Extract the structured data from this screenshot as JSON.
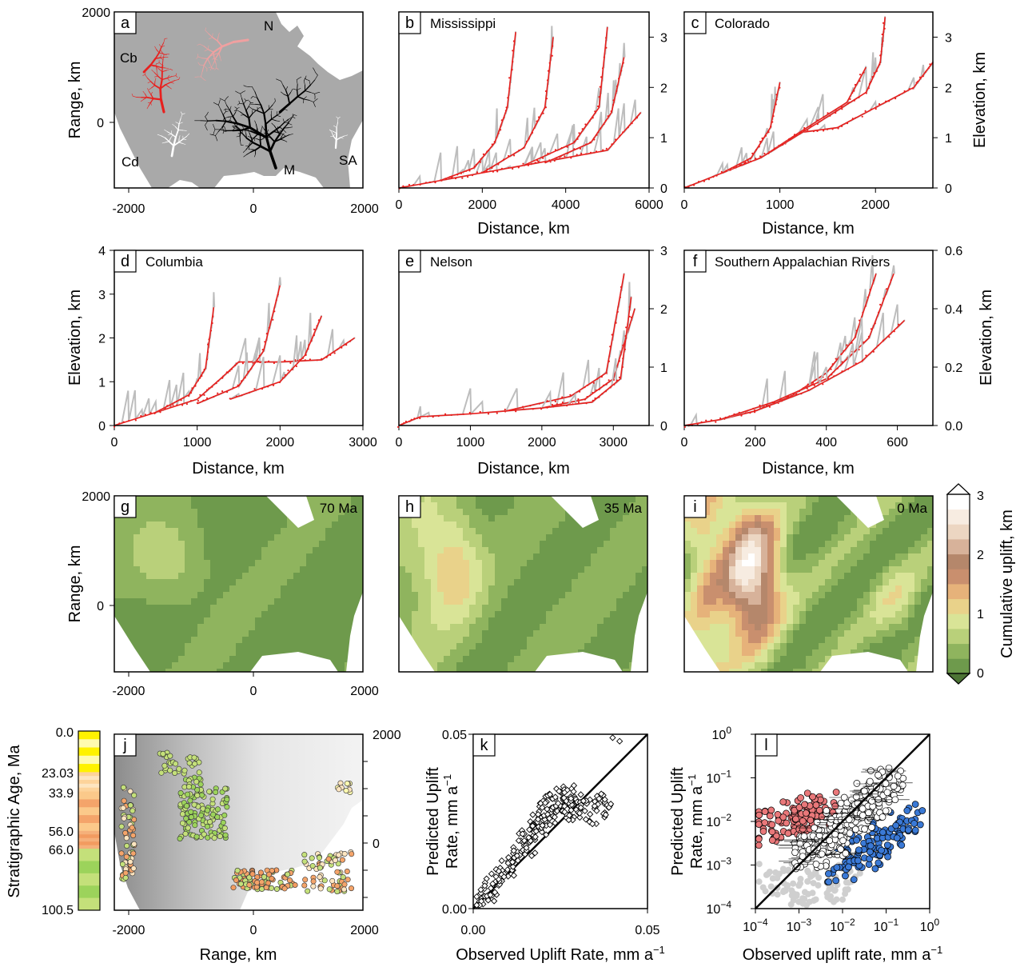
{
  "colors": {
    "land": "#a9a9a9",
    "sea": "#ffffff",
    "model_line": "#e8201e",
    "observed_line": "#bdbdbd",
    "black": "#000000",
    "uplift_low": "#6e9a4c",
    "uplift_high": "#ffffff",
    "overpredicted": "#e9787a",
    "underpredicted": "#3a79d6",
    "unclassified": "#cfcfcf"
  },
  "panel_a": {
    "letter": "a",
    "x_ticks": [
      "-2000",
      "0",
      "2000"
    ],
    "y_ticks": [
      "2000",
      "0"
    ],
    "ylabel": "Range, km",
    "drainage_labels": [
      "N",
      "Cb",
      "Cd",
      "M",
      "SA"
    ]
  },
  "panel_b": {
    "letter": "b",
    "title": "Mississippi",
    "x_ticks": [
      "0",
      "2000",
      "4000",
      "6000"
    ],
    "y_ticks": [
      "0",
      "1",
      "2",
      "3"
    ],
    "xlabel": "Distance, km"
  },
  "panel_c": {
    "letter": "c",
    "title": "Colorado",
    "x_ticks": [
      "0",
      "1000",
      "2000"
    ],
    "y_ticks": [
      "0",
      "1",
      "2",
      "3"
    ],
    "xlabel": "Distance, km",
    "ylabel": "Elevation, km"
  },
  "panel_d": {
    "letter": "d",
    "title": "Columbia",
    "x_ticks": [
      "0",
      "1000",
      "2000",
      "3000"
    ],
    "y_ticks": [
      "0",
      "1",
      "2",
      "3",
      "4"
    ],
    "xlabel": "Distance, km",
    "ylabel": "Elevation, km"
  },
  "panel_e": {
    "letter": "e",
    "title": "Nelson",
    "x_ticks": [
      "0",
      "1000",
      "2000",
      "3000"
    ],
    "y_ticks": [
      "0",
      "1",
      "2",
      "3"
    ],
    "xlabel": "Distance, km"
  },
  "panel_f": {
    "letter": "f",
    "title": "Southern Appalachian Rivers",
    "x_ticks": [
      "0",
      "200",
      "400",
      "600"
    ],
    "y_ticks": [
      "0.0",
      "0.2",
      "0.4",
      "0.6"
    ],
    "xlabel": "Distance, km",
    "ylabel": "Elevation, km"
  },
  "panel_g": {
    "letter": "g",
    "age": "70 Ma",
    "x_ticks": [
      "-2000",
      "0",
      "2000"
    ],
    "y_ticks": [
      "2000",
      "0"
    ],
    "ylabel": "Range, km"
  },
  "panel_h": {
    "letter": "h",
    "age": "35 Ma"
  },
  "panel_i": {
    "letter": "i",
    "age": "0 Ma"
  },
  "uplift_colorbar": {
    "label": "Cumulative uplift, km",
    "ticks": [
      "0",
      "1",
      "2",
      "3"
    ]
  },
  "age_colorbar": {
    "label": "Stratigraphic Age, Ma",
    "ticks": [
      "0.0",
      "23.03",
      "33.9",
      "56.0",
      "66.0",
      "100.5"
    ]
  },
  "panel_j": {
    "letter": "j",
    "x_ticks": [
      "-2000",
      "0",
      "2000"
    ],
    "y_ticks": [
      "2000",
      "0"
    ],
    "xlabel": "Range, km"
  },
  "panel_k": {
    "letter": "k",
    "x_ticks": [
      "0.00",
      "0.05"
    ],
    "y_ticks": [
      "0.00",
      "0.05"
    ],
    "xlabel": "Observed Uplift Rate, mm a",
    "xlabel_sup": "−1",
    "ylabel1": "Predicted Uplift",
    "ylabel2": "Rate, mm a",
    "ylabel_sup": "−1"
  },
  "panel_l": {
    "letter": "l",
    "x_ticks": [
      "-4",
      "-3",
      "-2",
      "-1",
      "0"
    ],
    "y_ticks": [
      "-4",
      "-3",
      "-2",
      "-1",
      "0"
    ],
    "tick_base": "10",
    "xlabel": "Observed uplift rate, mm a",
    "xlabel_sup": "−1",
    "ylabel1": "Predicted Uplift",
    "ylabel2": "Rate, mm a",
    "ylabel_sup": "−1"
  },
  "chart_data": [
    {
      "panel": "b",
      "type": "line",
      "title": "Mississippi",
      "xlabel": "Distance, km",
      "ylabel": "",
      "xlim": [
        0,
        6000
      ],
      "ylim": [
        0,
        3.5
      ],
      "series": [
        {
          "values_x": [
            0,
            1000,
            2000,
            3000,
            4000,
            5000,
            5800
          ],
          "values_y": [
            0,
            0.15,
            0.3,
            0.45,
            0.6,
            0.75,
            1.5
          ]
        },
        {
          "values_x": [
            1000,
            1800,
            2300,
            2600,
            2800
          ],
          "values_y": [
            0.15,
            0.4,
            0.9,
            1.6,
            3.1
          ]
        },
        {
          "values_x": [
            2000,
            3000,
            3500,
            3700
          ],
          "values_y": [
            0.3,
            0.8,
            1.6,
            3.0
          ]
        },
        {
          "values_x": [
            3000,
            4200,
            4800,
            5000
          ],
          "values_y": [
            0.45,
            0.9,
            1.6,
            3.2
          ]
        },
        {
          "values_x": [
            3500,
            4600,
            5100,
            5400
          ],
          "values_y": [
            0.5,
            0.9,
            1.5,
            2.6
          ]
        }
      ]
    },
    {
      "panel": "c",
      "type": "line",
      "title": "Colorado",
      "xlabel": "Distance, km",
      "ylabel": "Elevation, km",
      "xlim": [
        0,
        2600
      ],
      "ylim": [
        0,
        3.5
      ],
      "series": [
        {
          "values_x": [
            0,
            400,
            800,
            1200,
            1600,
            2000,
            2400,
            2600
          ],
          "values_y": [
            0,
            0.3,
            0.6,
            1.1,
            1.2,
            1.6,
            2.0,
            2.5
          ]
        },
        {
          "values_x": [
            400,
            700,
            900,
            1000
          ],
          "values_y": [
            0.3,
            0.6,
            1.2,
            2.1
          ]
        },
        {
          "values_x": [
            800,
            1400,
            1900,
            2050,
            2100
          ],
          "values_y": [
            0.6,
            1.3,
            1.9,
            2.5,
            3.4
          ]
        },
        {
          "values_x": [
            1200,
            1700,
            1900
          ],
          "values_y": [
            1.1,
            1.7,
            2.4
          ]
        }
      ]
    },
    {
      "panel": "d",
      "type": "line",
      "title": "Columbia",
      "xlabel": "Distance, km",
      "ylabel": "Elevation, km",
      "xlim": [
        0,
        3000
      ],
      "ylim": [
        0,
        4
      ],
      "series": [
        {
          "values_x": [
            0,
            500,
            1000,
            1300,
            1500,
            2000,
            2500,
            2900
          ],
          "values_y": [
            0,
            0.3,
            0.6,
            1.1,
            1.45,
            1.45,
            1.5,
            2.0
          ]
        },
        {
          "values_x": [
            500,
            900,
            1100,
            1200
          ],
          "values_y": [
            0.3,
            0.7,
            1.3,
            2.7
          ]
        },
        {
          "values_x": [
            1000,
            1500,
            1800,
            2000
          ],
          "values_y": [
            0.5,
            0.9,
            1.7,
            3.2
          ]
        },
        {
          "values_x": [
            1400,
            2000,
            2300,
            2500
          ],
          "values_y": [
            0.6,
            1.0,
            1.6,
            2.5
          ]
        }
      ]
    },
    {
      "panel": "e",
      "type": "line",
      "title": "Nelson",
      "xlabel": "Distance, km",
      "ylabel": "",
      "xlim": [
        0,
        3500
      ],
      "ylim": [
        0,
        3
      ],
      "series": [
        {
          "values_x": [
            0,
            300,
            1000,
            2000,
            2600,
            3000,
            3300
          ],
          "values_y": [
            0,
            0.15,
            0.2,
            0.3,
            0.45,
            0.8,
            2.0
          ]
        },
        {
          "values_x": [
            1500,
            2400,
            2900,
            3150
          ],
          "values_y": [
            0.25,
            0.5,
            0.9,
            2.6
          ]
        },
        {
          "values_x": [
            2000,
            2700,
            3100,
            3250
          ],
          "values_y": [
            0.3,
            0.4,
            0.8,
            2.2
          ]
        }
      ]
    },
    {
      "panel": "f",
      "type": "line",
      "title": "Southern Appalachian Rivers",
      "xlabel": "Distance, km",
      "ylabel": "Elevation, km",
      "xlim": [
        0,
        700
      ],
      "ylim": [
        0,
        0.6
      ],
      "series": [
        {
          "values_x": [
            0,
            100,
            200,
            300,
            400,
            480,
            540
          ],
          "values_y": [
            0,
            0.02,
            0.05,
            0.1,
            0.18,
            0.3,
            0.52
          ]
        },
        {
          "values_x": [
            100,
            250,
            400,
            520,
            590
          ],
          "values_y": [
            0.02,
            0.08,
            0.16,
            0.3,
            0.52
          ]
        },
        {
          "values_x": [
            200,
            350,
            500,
            620
          ],
          "values_y": [
            0.05,
            0.12,
            0.22,
            0.36
          ]
        }
      ]
    },
    {
      "panel": "k",
      "type": "scatter",
      "xlabel": "Observed Uplift Rate, mm a−1",
      "ylabel": "Predicted Uplift Rate, mm a−1",
      "xlim": [
        0,
        0.05
      ],
      "ylim": [
        0,
        0.05
      ],
      "x": [
        0.002,
        0.004,
        0.005,
        0.007,
        0.008,
        0.01,
        0.012,
        0.013,
        0.015,
        0.016,
        0.017,
        0.018,
        0.019,
        0.02,
        0.021,
        0.022,
        0.023,
        0.024,
        0.025,
        0.026,
        0.027,
        0.028,
        0.03,
        0.032,
        0.034,
        0.036,
        0.038,
        0.04,
        0.042
      ],
      "y": [
        0.002,
        0.004,
        0.006,
        0.007,
        0.01,
        0.012,
        0.014,
        0.016,
        0.02,
        0.022,
        0.018,
        0.025,
        0.024,
        0.028,
        0.026,
        0.03,
        0.027,
        0.032,
        0.029,
        0.031,
        0.028,
        0.033,
        0.03,
        0.029,
        0.027,
        0.031,
        0.029,
        0.049,
        0.048
      ]
    },
    {
      "panel": "l",
      "type": "scatter",
      "xscale": "log",
      "yscale": "log",
      "xlabel": "Observed uplift rate, mm a−1",
      "ylabel": "Predicted Uplift Rate, mm a−1",
      "xlim": [
        0.0001,
        1
      ],
      "ylim": [
        0.0001,
        1
      ],
      "series": [
        {
          "group": "overpredicted",
          "x": [
            0.0002,
            0.0005,
            0.001,
            0.002,
            0.003
          ],
          "y": [
            0.007,
            0.009,
            0.012,
            0.015,
            0.02
          ]
        },
        {
          "group": "within",
          "x": [
            0.002,
            0.005,
            0.01,
            0.02,
            0.05,
            0.1
          ],
          "y": [
            0.002,
            0.004,
            0.008,
            0.015,
            0.03,
            0.07
          ]
        },
        {
          "group": "underpredicted",
          "x": [
            0.01,
            0.03,
            0.05,
            0.1,
            0.3
          ],
          "y": [
            0.001,
            0.002,
            0.003,
            0.005,
            0.01
          ]
        },
        {
          "group": "unclassified",
          "x": [
            0.0003,
            0.001,
            0.003,
            0.01
          ],
          "y": [
            0.0005,
            0.0003,
            0.0003,
            0.0004
          ]
        }
      ]
    }
  ]
}
